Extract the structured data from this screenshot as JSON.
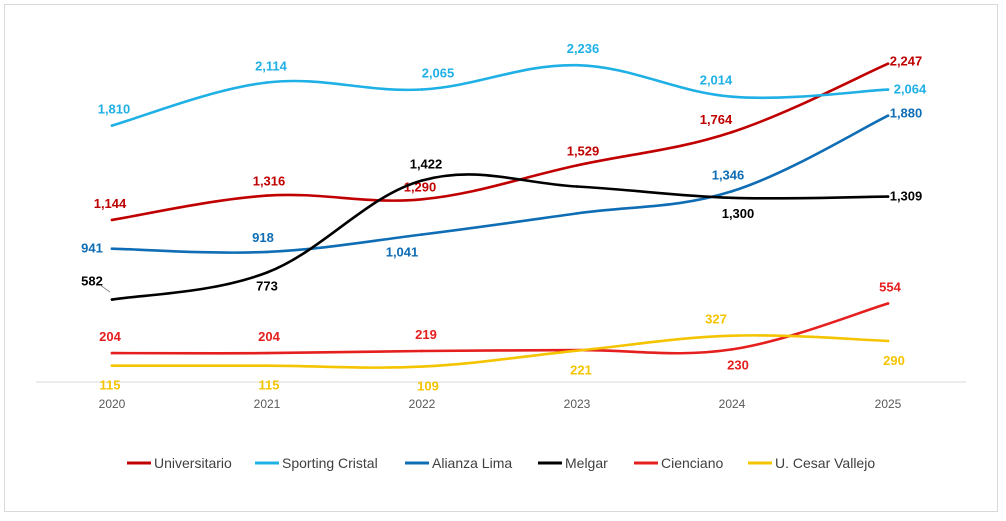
{
  "chart_data": {
    "type": "line",
    "title": "",
    "xlabel": "",
    "ylabel": "",
    "categories": [
      "2020",
      "2021",
      "2022",
      "2023",
      "2024",
      "2025"
    ],
    "ylim": [
      0,
      2400
    ],
    "grid": false,
    "legend_position": "bottom",
    "series": [
      {
        "name": "Universitario",
        "color": "#C00000",
        "values": [
          1144,
          1316,
          1290,
          1529,
          1764,
          2247
        ],
        "labels": [
          "1,144",
          "1,316",
          "1,290",
          "1,529",
          "1,764",
          "2,247"
        ]
      },
      {
        "name": "Sporting Cristal",
        "color": "#1FB0E6",
        "values": [
          1810,
          2114,
          2065,
          2236,
          2014,
          2064
        ],
        "labels": [
          "1,810",
          "2,114",
          "2,065",
          "2,236",
          "2,014",
          "2,064"
        ]
      },
      {
        "name": "Alianza Lima",
        "color": "#0E6DB4",
        "values": [
          941,
          918,
          1041,
          1190,
          1346,
          1880
        ],
        "labels": [
          "941",
          "918",
          "1,041",
          "",
          "1,346",
          "1,880"
        ]
      },
      {
        "name": "Melgar",
        "color": "#000000",
        "values": [
          582,
          773,
          1422,
          1380,
          1300,
          1309
        ],
        "labels": [
          "582",
          "773",
          "1,422",
          "",
          "1,300",
          "1,309"
        ]
      },
      {
        "name": "Cienciano",
        "color": "#E51E1E",
        "values": [
          204,
          204,
          219,
          225,
          230,
          554
        ],
        "labels": [
          "204",
          "204",
          "219",
          "",
          "230",
          "554"
        ]
      },
      {
        "name": "U. Cesar Vallejo",
        "color": "#F5C400",
        "values": [
          115,
          115,
          109,
          221,
          327,
          290
        ],
        "labels": [
          "115",
          "115",
          "109",
          "221",
          "327",
          "290"
        ]
      }
    ]
  }
}
